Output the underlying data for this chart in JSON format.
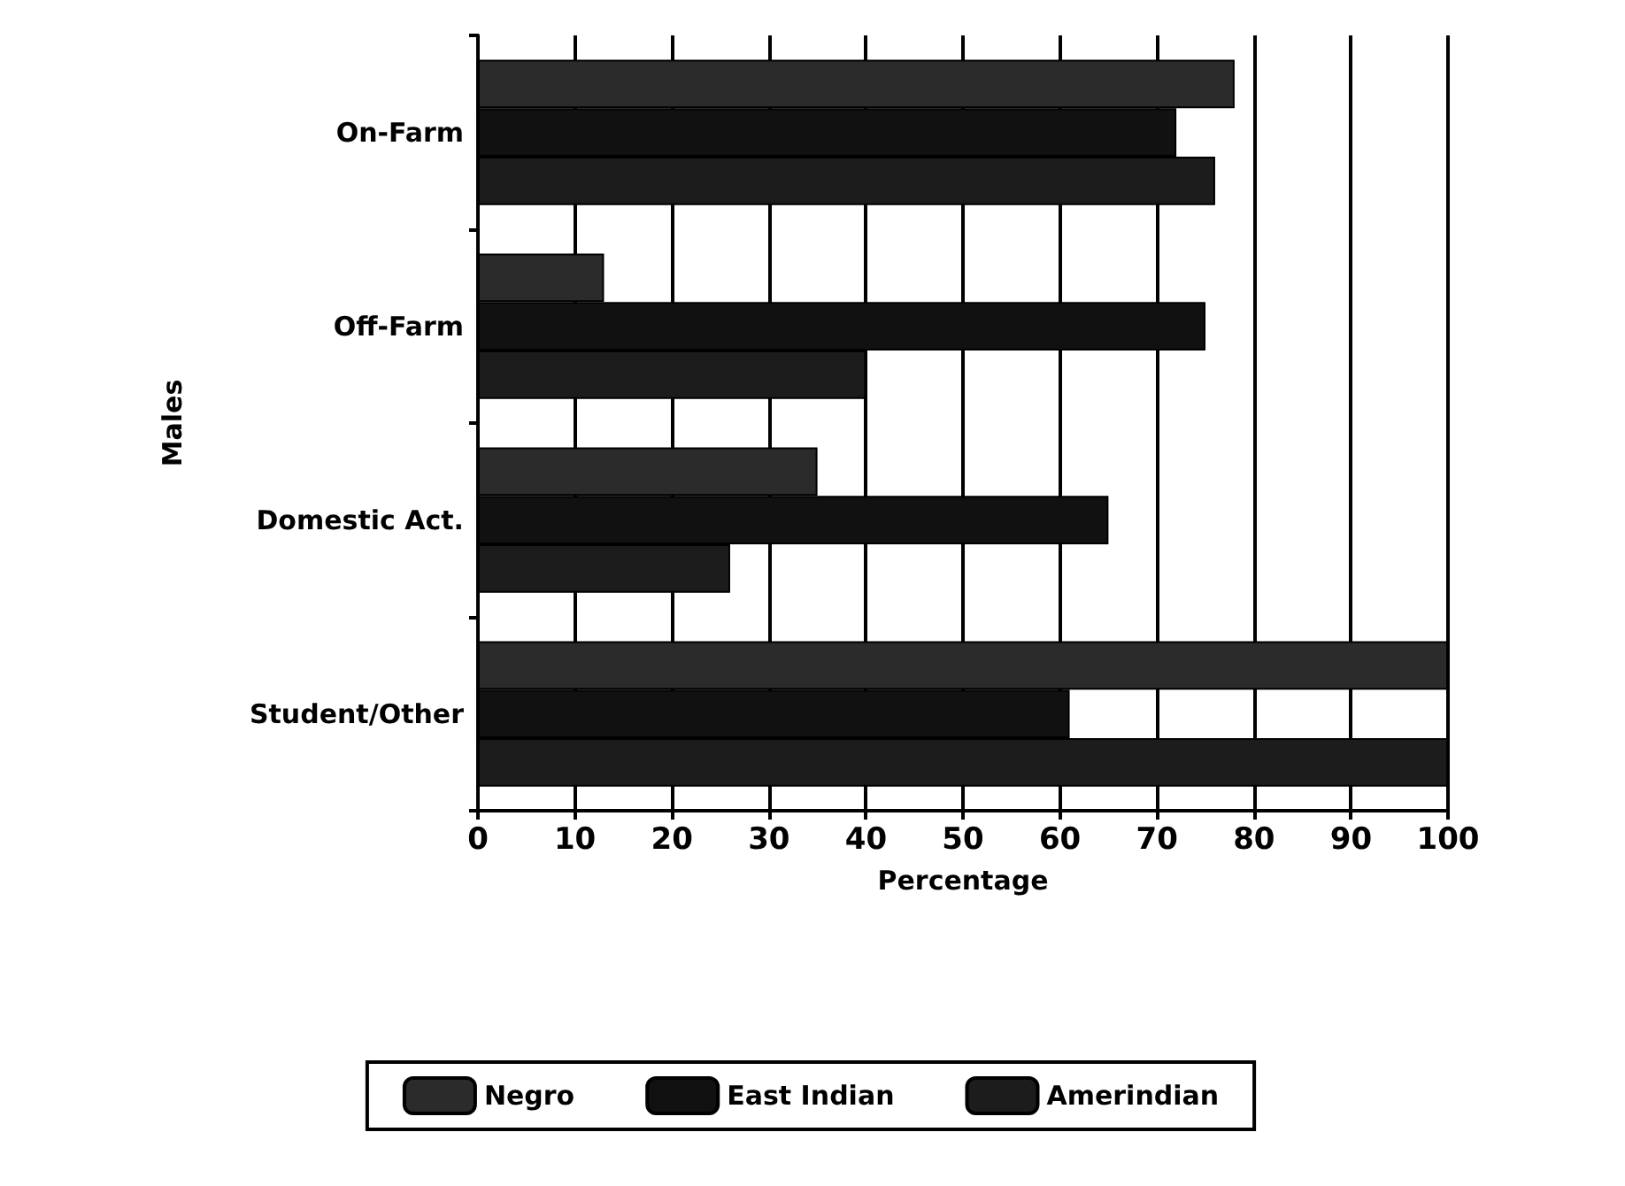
{
  "chart_data": {
    "type": "bar",
    "orientation": "horizontal",
    "xlabel": "Percentage",
    "ylabel": "Males",
    "categories": [
      "On-Farm",
      "Off-Farm",
      "Domestic Act.",
      "Student/Other"
    ],
    "series": [
      {
        "name": "Negro",
        "color": "#2b2b2b",
        "values": [
          78,
          13,
          35,
          100
        ]
      },
      {
        "name": "East Indian",
        "color": "#111111",
        "values": [
          72,
          75,
          65,
          61
        ]
      },
      {
        "name": "Amerindian",
        "color": "#1c1c1c",
        "values": [
          76,
          40,
          26,
          100
        ]
      }
    ],
    "xlim": [
      0,
      100
    ],
    "xticks": [
      0,
      10,
      20,
      30,
      40,
      50,
      60,
      70,
      80,
      90,
      100
    ],
    "grid": "x",
    "legend": "bottom"
  }
}
